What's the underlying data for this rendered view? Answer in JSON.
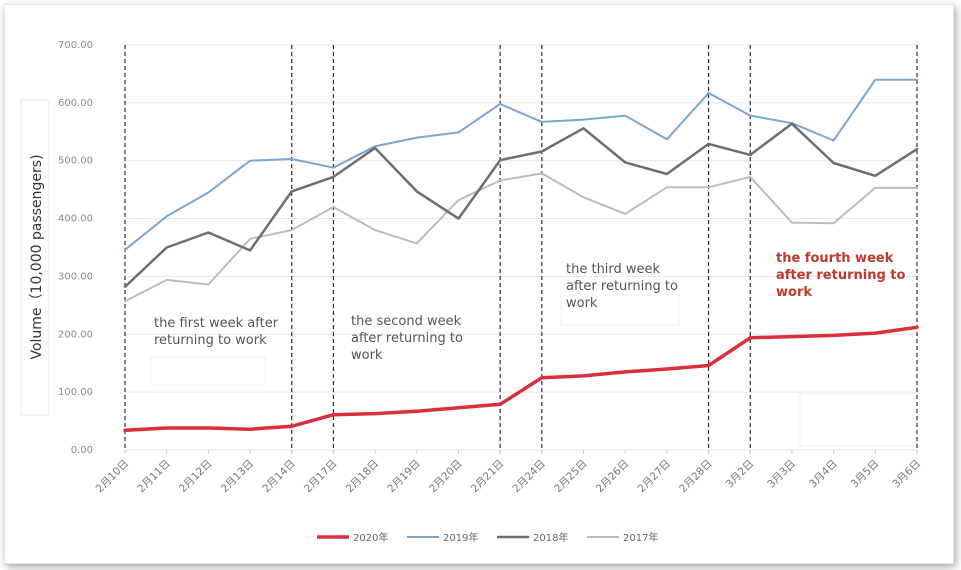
{
  "chart_data": {
    "type": "line",
    "ylabel": "Volume（10,000 passengers)",
    "ylim": [
      0,
      700
    ],
    "yticks": [
      "0.00",
      "100.00",
      "200.00",
      "300.00",
      "400.00",
      "500.00",
      "600.00",
      "700.00"
    ],
    "grid": true,
    "legend_position": "bottom",
    "categories": [
      "2月10日",
      "2月11日",
      "2月12日",
      "2月13日",
      "2月14日",
      "2月17日",
      "2月18日",
      "2月19日",
      "2月20日",
      "2月21日",
      "2月24日",
      "2月25日",
      "2月26日",
      "2月27日",
      "2月28日",
      "3月2日",
      "3月3日",
      "3月4日",
      "3月5日",
      "3月6日"
    ],
    "series": [
      {
        "name": "2020年",
        "color": "#d9303a",
        "width": 3.5,
        "values": [
          34,
          38,
          38,
          36,
          41,
          61,
          63,
          67,
          73,
          79,
          125,
          128,
          135,
          140,
          146,
          194,
          196,
          198,
          202,
          212
        ]
      },
      {
        "name": "2019年",
        "color": "#7ba6d0",
        "width": 2,
        "values": [
          346,
          404,
          445,
          500,
          503,
          488,
          525,
          540,
          549,
          598,
          567,
          571,
          578,
          537,
          617,
          578,
          565,
          535,
          640,
          640
        ]
      },
      {
        "name": "2018年",
        "color": "#6e6e6e",
        "width": 2.5,
        "values": [
          282,
          350,
          376,
          345,
          447,
          472,
          522,
          447,
          400,
          501,
          516,
          556,
          497,
          477,
          529,
          510,
          564,
          496,
          474,
          520
        ]
      },
      {
        "name": "2017年",
        "color": "#bcbcbc",
        "width": 2,
        "values": [
          257,
          294,
          286,
          365,
          380,
          420,
          380,
          357,
          432,
          466,
          478,
          437,
          408,
          454,
          454,
          472,
          393,
          392,
          453,
          453
        ]
      }
    ],
    "week_dividers_after_index": [
      0,
      4,
      5,
      9,
      10,
      14,
      15,
      19
    ],
    "annotations": [
      {
        "id": "week1",
        "lines": [
          "the first week after",
          "returning to work"
        ],
        "color": "#555555"
      },
      {
        "id": "week2",
        "lines": [
          "the second week",
          "after returning to",
          "work"
        ],
        "color": "#555555"
      },
      {
        "id": "week3",
        "lines": [
          "the third week",
          "after returning to",
          "work"
        ],
        "color": "#555555"
      },
      {
        "id": "week4",
        "lines": [
          "the fourth week",
          "after returning to",
          "work"
        ],
        "color": "#c0392b"
      }
    ]
  }
}
